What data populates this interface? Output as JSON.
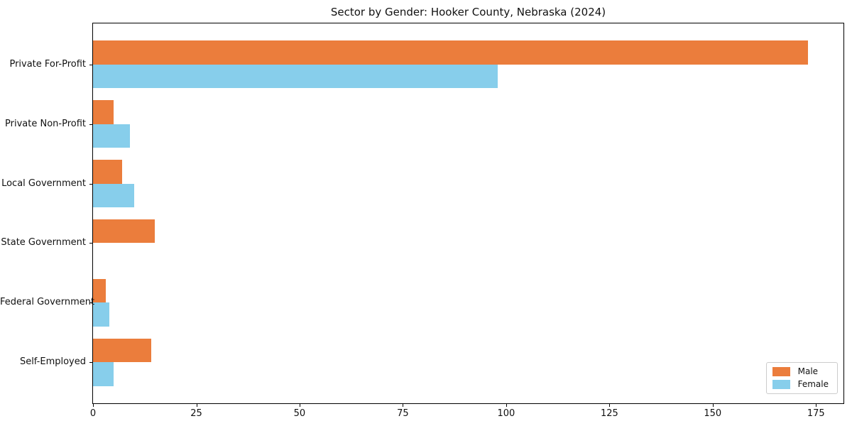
{
  "title": "Sector by Gender: Hooker County, Nebraska (2024)",
  "colors": {
    "male": "#eb7d3c",
    "female": "#87ceeb",
    "spine": "#000000",
    "text": "#111111",
    "legend_border": "#cccccc"
  },
  "chart_data": {
    "type": "bar",
    "orientation": "horizontal",
    "title": "Sector by Gender: Hooker County, Nebraska (2024)",
    "xlabel": "",
    "ylabel": "",
    "categories": [
      "Private For-Profit",
      "Private Non-Profit",
      "Local Government",
      "State Government",
      "Federal Government",
      "Self-Employed"
    ],
    "series": [
      {
        "name": "Male",
        "color": "#eb7d3c",
        "values": [
          173,
          5,
          7,
          15,
          3,
          14
        ]
      },
      {
        "name": "Female",
        "color": "#87ceeb",
        "values": [
          98,
          9,
          10,
          0,
          4,
          5
        ]
      }
    ],
    "x_ticks": [
      0,
      25,
      50,
      75,
      100,
      125,
      150,
      175
    ],
    "xlim": [
      0,
      181.65
    ],
    "grid": false,
    "legend_position": "lower right"
  }
}
